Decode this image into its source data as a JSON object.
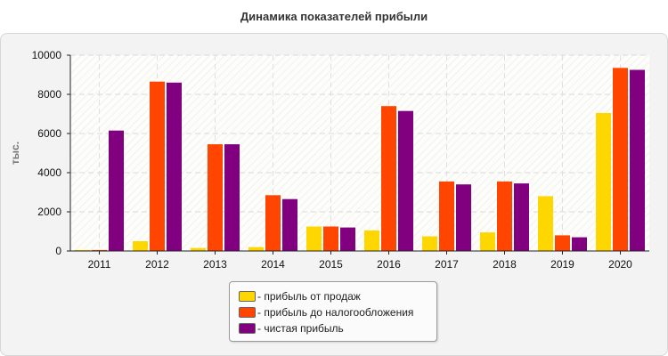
{
  "chart_data": {
    "type": "bar",
    "title": "Динамика показателей прибыли",
    "ylabel": "тыс.",
    "xlabel": "",
    "ylim": [
      0,
      10000
    ],
    "yticks": [
      0,
      2000,
      4000,
      6000,
      8000,
      10000
    ],
    "grid": true,
    "legend_position": "bottom-center",
    "categories": [
      "2011",
      "2012",
      "2013",
      "2014",
      "2015",
      "2016",
      "2017",
      "2018",
      "2019",
      "2020"
    ],
    "series": [
      {
        "name": "- прибыль от продаж",
        "color": "#ffd700",
        "values": [
          50,
          500,
          150,
          200,
          1250,
          1050,
          750,
          950,
          2800,
          7050
        ]
      },
      {
        "name": "- прибыль до налогообложения",
        "color": "#ff4500",
        "values": [
          50,
          8650,
          5450,
          2850,
          1250,
          7400,
          3550,
          3550,
          800,
          9350
        ]
      },
      {
        "name": "- чистая прибыль",
        "color": "#800080",
        "values": [
          6150,
          8600,
          5450,
          2650,
          1200,
          7150,
          3400,
          3450,
          700,
          9250
        ]
      }
    ]
  }
}
